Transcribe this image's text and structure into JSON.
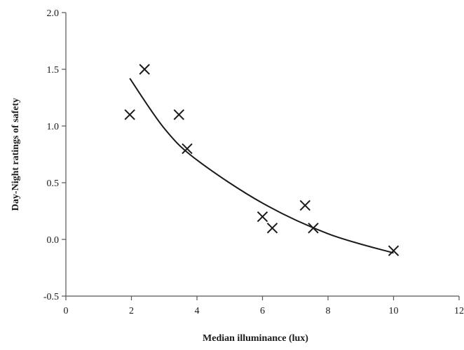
{
  "chart_data": {
    "type": "scatter",
    "title": "",
    "xlabel": "Median illuminance  (lux)",
    "ylabel": "Day-Night  ratings  of safety",
    "xlim": [
      0,
      12
    ],
    "ylim": [
      -0.5,
      2.0
    ],
    "x_ticks": [
      "0",
      "2",
      "4",
      "6",
      "8",
      "10",
      "12"
    ],
    "y_ticks": [
      "-0.5",
      "0.0",
      "0.5",
      "1.0",
      "1.5",
      "2.0"
    ],
    "grid": false,
    "legend": "none",
    "marker": "x",
    "series": [
      {
        "points": [
          {
            "x": 1.95,
            "y": 1.1
          },
          {
            "x": 2.4,
            "y": 1.5
          },
          {
            "x": 3.45,
            "y": 1.1
          },
          {
            "x": 3.7,
            "y": 0.8
          },
          {
            "x": 6.0,
            "y": 0.2
          },
          {
            "x": 6.3,
            "y": 0.1
          },
          {
            "x": 7.3,
            "y": 0.3
          },
          {
            "x": 7.55,
            "y": 0.1
          },
          {
            "x": 10.0,
            "y": -0.1
          }
        ]
      }
    ],
    "trendline": {
      "type": "logarithmic",
      "x_range": [
        1.95,
        10.0
      ],
      "samples": [
        {
          "x": 1.95,
          "y": 1.42
        },
        {
          "x": 3.0,
          "y": 0.98
        },
        {
          "x": 4.0,
          "y": 0.7
        },
        {
          "x": 6.0,
          "y": 0.32
        },
        {
          "x": 8.0,
          "y": 0.05
        },
        {
          "x": 10.0,
          "y": -0.12
        }
      ]
    },
    "colors": {
      "marks": "#1a1a1a",
      "axes": "#555555"
    }
  }
}
